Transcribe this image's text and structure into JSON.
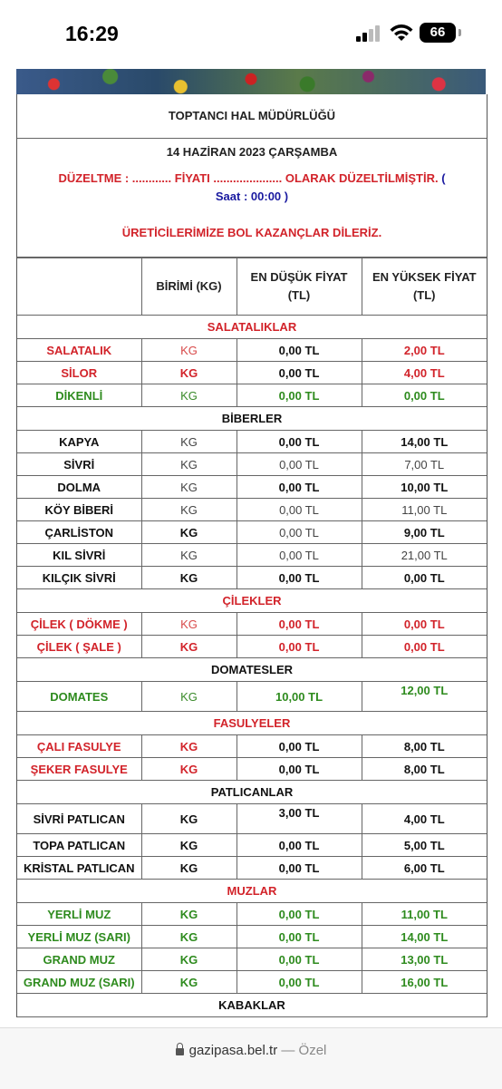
{
  "status_bar": {
    "time": "16:29",
    "battery": "66"
  },
  "header": {
    "title": "TOPTANCI HAL MÜDÜRLÜĞÜ",
    "date": "14 HAZİRAN 2023  ÇARŞAMBA",
    "correction_line": "DÜZELTME : ............  FİYATI  .....................   OLARAK DÜZELTİLMİŞTİR.",
    "open_paren": "(",
    "time_note": "Saat : 00:00 )",
    "wish": "ÜRETİCİLERİMİZE BOL KAZANÇLAR DİLERİZ."
  },
  "columns": {
    "unit": "BİRİMİ (KG)",
    "min": "EN DÜŞÜK FİYAT (TL)",
    "max": "EN YÜKSEK FİYAT (TL)"
  },
  "sections": [
    {
      "name": "SALATALIKLAR",
      "color": "#d2232a",
      "rows": [
        {
          "name": "SALATALIK",
          "unit": "KG",
          "min": "0,00 TL",
          "max": "2,00 TL"
        },
        {
          "name": "SİLOR",
          "unit": "KG",
          "min": "0,00 TL",
          "max": "4,00 TL"
        },
        {
          "name": "DİKENLİ",
          "unit": "KG",
          "min": "0,00 TL",
          "max": "0,00 TL"
        }
      ]
    },
    {
      "name": "BİBERLER",
      "color": "#111111",
      "rows": [
        {
          "name": "KAPYA",
          "unit": "KG",
          "min": "0,00 TL",
          "max": "14,00 TL"
        },
        {
          "name": "SİVRİ",
          "unit": "KG",
          "min": "0,00 TL",
          "max": "7,00 TL"
        },
        {
          "name": "DOLMA",
          "unit": "KG",
          "min": "0,00 TL",
          "max": "10,00 TL"
        },
        {
          "name": "KÖY BİBERİ",
          "unit": "KG",
          "min": "0,00 TL",
          "max": "11,00 TL"
        },
        {
          "name": "ÇARLİSTON",
          "unit": "KG",
          "min": "0,00 TL",
          "max": "9,00 TL"
        },
        {
          "name": "KIL SİVRİ",
          "unit": "KG",
          "min": "0,00 TL",
          "max": "21,00 TL"
        },
        {
          "name": "KILÇIK SİVRİ",
          "unit": "KG",
          "min": "0,00 TL",
          "max": "0,00 TL"
        }
      ]
    },
    {
      "name": "ÇİLEKLER",
      "color": "#d2232a",
      "rows": [
        {
          "name": "ÇİLEK ( DÖKME )",
          "unit": "KG",
          "min": "0,00 TL",
          "max": "0,00 TL"
        },
        {
          "name": "ÇİLEK ( ŞALE )",
          "unit": "KG",
          "min": "0,00 TL",
          "max": "0,00 TL"
        }
      ]
    },
    {
      "name": "DOMATESLER",
      "color": "#111111",
      "rows": [
        {
          "name": "DOMATES",
          "unit": "KG",
          "min": "10,00 TL",
          "max": "12,00 TL"
        }
      ]
    },
    {
      "name": "FASULYELER",
      "color": "#d2232a",
      "rows": [
        {
          "name": "ÇALI FASULYE",
          "unit": "KG",
          "min": "0,00 TL",
          "max": "8,00 TL"
        },
        {
          "name": "ŞEKER FASULYE",
          "unit": "KG",
          "min": "0,00 TL",
          "max": "8,00 TL"
        }
      ]
    },
    {
      "name": "PATLICANLAR",
      "color": "#111111",
      "rows": [
        {
          "name": "SİVRİ PATLICAN",
          "unit": "KG",
          "min": "3,00 TL",
          "max": "4,00 TL"
        },
        {
          "name": "TOPA PATLICAN",
          "unit": "KG",
          "min": "0,00 TL",
          "max": "5,00 TL"
        },
        {
          "name": "KRİSTAL PATLICAN",
          "unit": "KG",
          "min": "0,00 TL",
          "max": "6,00 TL"
        }
      ]
    },
    {
      "name": "MUZLAR",
      "color": "#d2232a",
      "rows": [
        {
          "name": "YERLİ MUZ",
          "unit": "KG",
          "min": "0,00 TL",
          "max": "11,00 TL"
        },
        {
          "name": "YERLİ MUZ (SARI)",
          "unit": "KG",
          "min": "0,00 TL",
          "max": "14,00 TL"
        },
        {
          "name": "GRAND MUZ",
          "unit": "KG",
          "min": "0,00 TL",
          "max": "13,00 TL"
        },
        {
          "name": "GRAND MUZ (SARI)",
          "unit": "KG",
          "min": "0,00 TL",
          "max": "16,00 TL"
        }
      ]
    },
    {
      "name": "KABAKLAR",
      "color": "#111111",
      "rows": []
    }
  ],
  "browser": {
    "domain": "gazipasa.bel.tr",
    "separator": " — ",
    "mode": "Özel"
  }
}
